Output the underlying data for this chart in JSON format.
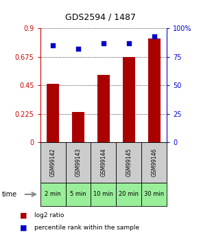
{
  "title": "GDS2594 / 1487",
  "categories": [
    "GSM99142",
    "GSM99143",
    "GSM99144",
    "GSM99145",
    "GSM99146"
  ],
  "time_labels": [
    "2 min",
    "5 min",
    "10 min",
    "20 min",
    "30 min"
  ],
  "log2_ratio": [
    0.46,
    0.24,
    0.53,
    0.675,
    0.82
  ],
  "percentile_rank": [
    85,
    82,
    87,
    87,
    93
  ],
  "bar_color": "#aa0000",
  "dot_color": "#0000cc",
  "left_yticks": [
    0,
    0.225,
    0.45,
    0.675,
    0.9
  ],
  "left_ylim": [
    0,
    0.9
  ],
  "right_yticks": [
    0,
    25,
    50,
    75,
    100
  ],
  "right_ylim": [
    0,
    100
  ],
  "legend_bar_label": "log2 ratio",
  "legend_dot_label": "percentile rank within the sample",
  "left_axis_color": "#cc0000",
  "right_axis_color": "#0000cc",
  "grid_color": "#000000",
  "bar_width": 0.5,
  "gsm_box_color": "#cccccc",
  "time_box_color": "#99ee99",
  "title_fontsize": 9
}
